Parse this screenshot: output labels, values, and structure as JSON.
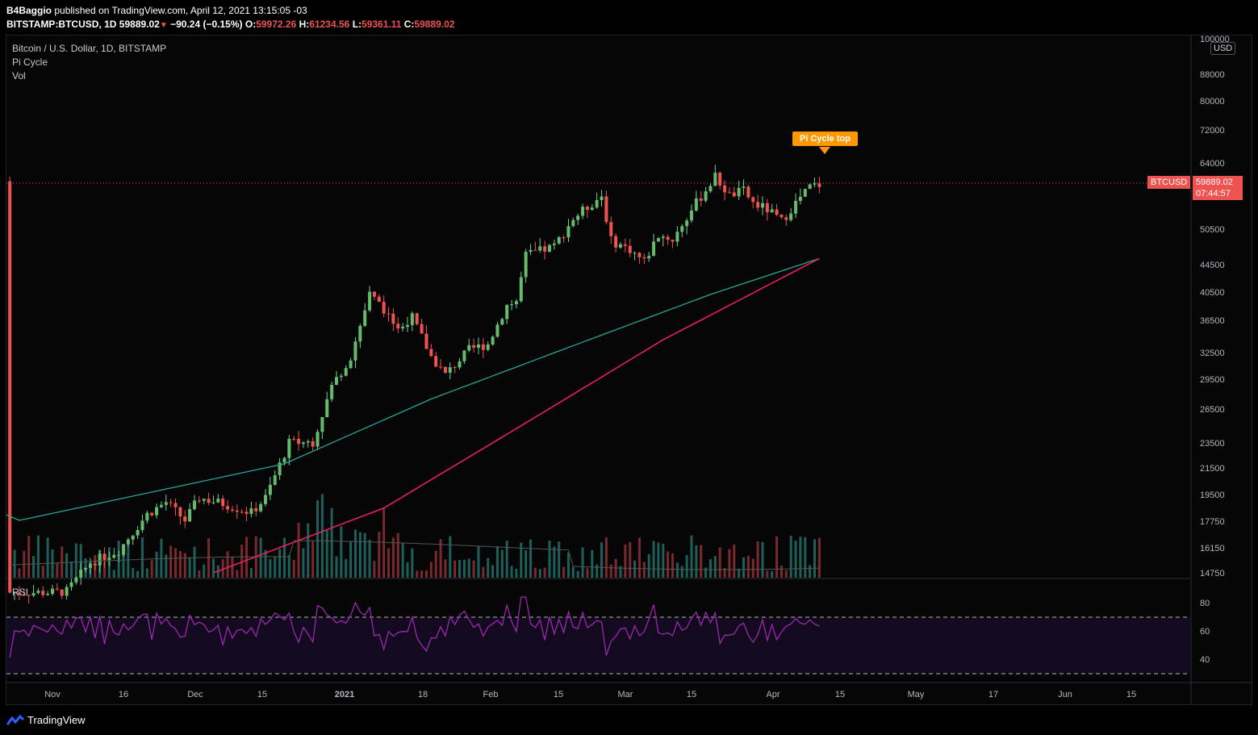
{
  "header": {
    "publisher": "B4Baggio",
    "published_text": "published on TradingView.com, April 12, 2021 13:15:05 -03",
    "symbol_line": "BITSTAMP:BTCUSD, 1D",
    "last": "59889.02",
    "change": "−90.24 (−0.15%)",
    "o_label": "O:",
    "o_value": "59972.26",
    "h_label": "H:",
    "h_value": "61234.56",
    "l_label": "L:",
    "l_value": "59361.11",
    "c_label": "C:",
    "c_value": "59889.02"
  },
  "legend": {
    "title": "Bitcoin / U.S. Dollar, 1D, BITSTAMP",
    "indicator1": "Pi Cycle",
    "indicator2": "Vol",
    "rsi": "RSI"
  },
  "price_scale": {
    "currency": "USD",
    "ticks": [
      "100000",
      "88000",
      "80000",
      "72000",
      "64000",
      "50500",
      "44500",
      "40500",
      "36500",
      "32500",
      "29500",
      "26500",
      "23500",
      "21500",
      "19500",
      "17750",
      "16150",
      "14750"
    ],
    "last_symbol": "BTCUSD",
    "last_price": "59889.02",
    "countdown": "07:44:57"
  },
  "rsi_scale": {
    "ticks": [
      "80",
      "60",
      "40"
    ]
  },
  "time_axis": {
    "ticks": [
      "Nov",
      "16",
      "Dec",
      "15",
      "2021",
      "18",
      "Feb",
      "15",
      "Mar",
      "15",
      "Apr",
      "15",
      "May",
      "17",
      "Jun",
      "15"
    ]
  },
  "annotation": {
    "label": "Pi Cycle top"
  },
  "footer": {
    "brand": "TradingView"
  },
  "colors": {
    "up": "#26a69a",
    "down": "#ef5350",
    "ma_long": "#26a69a",
    "ma_short": "#e91e63",
    "rsi": "#9c27b0",
    "pi_label": "#ff9800"
  },
  "chart_data": {
    "type": "candlestick",
    "symbol": "BITSTAMP:BTCUSD",
    "interval": "1D",
    "scale": "log",
    "anchors": {
      "dates": [
        "2020-11-01",
        "2020-11-15",
        "2020-12-01",
        "2020-12-15",
        "2021-01-01",
        "2021-01-18",
        "2021-02-01",
        "2021-02-15",
        "2021-03-01",
        "2021-03-15",
        "2021-04-01",
        "2021-04-15",
        "2021-05-01",
        "2021-05-17",
        "2021-06-01",
        "2021-06-15"
      ],
      "closes": [
        13750,
        15900,
        19050,
        19400,
        29200,
        36500,
        33500,
        48500,
        49500,
        59000,
        58800,
        null,
        null,
        null,
        null,
        null
      ]
    },
    "ma_long": {
      "name": "",
      "approx": [
        [
          "2020-10-25",
          17800
        ],
        [
          "2020-12-20",
          21800
        ],
        [
          "2021-01-20",
          27500
        ],
        [
          "2021-02-20",
          33500
        ],
        [
          "2021-03-20",
          40000
        ],
        [
          "2021-04-12",
          45500
        ]
      ]
    },
    "ma_short": {
      "name": "",
      "approx": [
        [
          "2020-12-05",
          14750
        ],
        [
          "2021-01-10",
          18600
        ],
        [
          "2021-02-10",
          25500
        ],
        [
          "2021-03-10",
          34000
        ],
        [
          "2021-04-12",
          45500
        ]
      ]
    },
    "rsi": {
      "levels": [
        70,
        30
      ],
      "last": 60
    },
    "last_close": 59889.02
  }
}
